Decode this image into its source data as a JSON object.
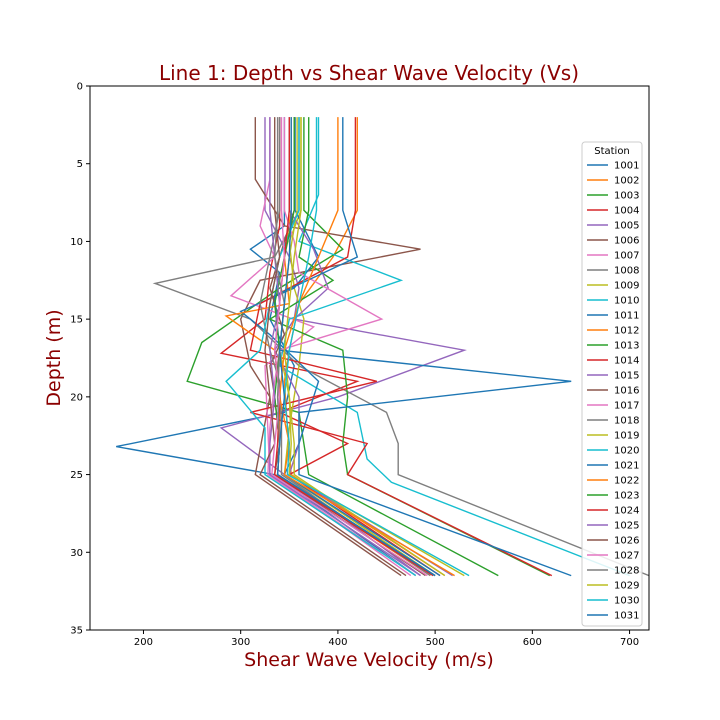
{
  "chart_data": {
    "type": "line",
    "title": "Line 1: Depth vs Shear Wave Velocity (Vs)",
    "xlabel": "Shear Wave Velocity (m/s)",
    "ylabel": "Depth (m)",
    "xlim": [
      145,
      720
    ],
    "ylim": [
      35,
      0
    ],
    "xticks": [
      200,
      300,
      400,
      500,
      600,
      700
    ],
    "yticks": [
      0,
      5,
      10,
      15,
      20,
      25,
      30,
      35
    ],
    "grid": false,
    "legend_title": "Station",
    "legend_position": "right",
    "colors": [
      "#1f77b4",
      "#ff7f0e",
      "#2ca02c",
      "#d62728",
      "#9467bd",
      "#8c564b",
      "#e377c2",
      "#7f7f7f",
      "#bcbd22",
      "#17becf"
    ],
    "series": [
      {
        "name": "1001",
        "depth": [
          2,
          9,
          10.5,
          12,
          15,
          18,
          21,
          23.2,
          25,
          31.5
        ],
        "vs": [
          345,
          345,
          310,
          340,
          330,
          355,
          345,
          172,
          335,
          480
        ]
      },
      {
        "name": "1002",
        "depth": [
          2,
          8,
          11,
          14,
          17,
          19,
          22,
          25,
          31.5
        ],
        "vs": [
          420,
          420,
          395,
          360,
          350,
          345,
          348,
          352,
          510
        ]
      },
      {
        "name": "1003",
        "depth": [
          2,
          8,
          10.5,
          13,
          16.5,
          19,
          21,
          25,
          31.5
        ],
        "vs": [
          365,
          365,
          405,
          340,
          260,
          245,
          360,
          370,
          565
        ]
      },
      {
        "name": "1004",
        "depth": [
          2,
          9,
          12,
          15,
          17.2,
          19,
          21,
          23,
          25,
          31.5
        ],
        "vs": [
          340,
          340,
          330,
          325,
          280,
          420,
          340,
          410,
          350,
          505
        ]
      },
      {
        "name": "1005",
        "depth": [
          2,
          8,
          11,
          13,
          15,
          17,
          20,
          22,
          25,
          31.5
        ],
        "vs": [
          325,
          325,
          350,
          360,
          355,
          530,
          400,
          280,
          345,
          485
        ]
      },
      {
        "name": "1006",
        "depth": [
          2,
          6,
          9,
          10.5,
          12.5,
          15,
          18,
          20,
          25,
          31.5
        ],
        "vs": [
          315,
          315,
          345,
          485,
          320,
          300,
          310,
          330,
          315,
          465
        ]
      },
      {
        "name": "1007",
        "depth": [
          2,
          6,
          9,
          11,
          13.5,
          15.5,
          18,
          25,
          31.5
        ],
        "vs": [
          330,
          330,
          320,
          335,
          290,
          375,
          325,
          330,
          475
        ]
      },
      {
        "name": "1008",
        "depth": [
          2,
          8,
          11,
          12.7,
          15,
          18,
          21,
          23,
          25,
          31.5
        ],
        "vs": [
          360,
          360,
          335,
          212,
          310,
          360,
          450,
          462,
          462,
          720
        ]
      },
      {
        "name": "1009",
        "depth": [
          2,
          8,
          10,
          13,
          15,
          18,
          22,
          25,
          31.5
        ],
        "vs": [
          362,
          362,
          350,
          355,
          365,
          360,
          350,
          345,
          500
        ]
      },
      {
        "name": "1010",
        "depth": [
          2,
          7,
          10,
          12.5,
          15,
          18,
          21,
          24,
          25.5,
          31.5
        ],
        "vs": [
          380,
          380,
          360,
          465,
          350,
          340,
          420,
          430,
          455,
          700
        ]
      },
      {
        "name": "1011",
        "depth": [
          2,
          8,
          11,
          13,
          14.5,
          16,
          19,
          23,
          25,
          31.5
        ],
        "vs": [
          356,
          356,
          380,
          355,
          300,
          330,
          380,
          360,
          345,
          505
        ]
      },
      {
        "name": "1012",
        "depth": [
          2,
          8,
          11,
          14,
          14.8,
          17,
          20,
          23,
          25,
          31.5
        ],
        "vs": [
          352,
          352,
          345,
          350,
          285,
          335,
          340,
          340,
          338,
          495
        ]
      },
      {
        "name": "1013",
        "depth": [
          2,
          8,
          11,
          12.5,
          15,
          17,
          20,
          23,
          25,
          31.5
        ],
        "vs": [
          370,
          370,
          360,
          395,
          330,
          405,
          410,
          405,
          410,
          618
        ]
      },
      {
        "name": "1014",
        "depth": [
          2,
          8,
          11,
          14,
          17,
          19,
          21,
          23,
          25,
          31.5
        ],
        "vs": [
          418,
          418,
          410,
          320,
          310,
          440,
          310,
          430,
          410,
          620
        ]
      },
      {
        "name": "1015",
        "depth": [
          2,
          8,
          10.5,
          13,
          15,
          17,
          20,
          23,
          25,
          31.5
        ],
        "vs": [
          350,
          350,
          375,
          390,
          355,
          335,
          360,
          360,
          350,
          518
        ]
      },
      {
        "name": "1016",
        "depth": [
          2,
          8,
          11,
          13,
          16,
          18,
          20,
          23,
          25,
          31.5
        ],
        "vs": [
          355,
          355,
          340,
          330,
          345,
          330,
          335,
          340,
          335,
          490
        ]
      },
      {
        "name": "1017",
        "depth": [
          2,
          8,
          10,
          12,
          15,
          17,
          19,
          22,
          25,
          31.5
        ],
        "vs": [
          345,
          345,
          355,
          360,
          445,
          340,
          335,
          330,
          328,
          480
        ]
      },
      {
        "name": "1018",
        "depth": [
          2,
          8,
          11,
          14,
          17,
          19,
          22,
          25,
          31.5
        ],
        "vs": [
          340,
          340,
          330,
          320,
          330,
          340,
          342,
          342,
          495
        ]
      },
      {
        "name": "1019",
        "depth": [
          2,
          8,
          11,
          14,
          17,
          20,
          23,
          25,
          31.5
        ],
        "vs": [
          358,
          358,
          350,
          345,
          340,
          350,
          355,
          355,
          510
        ]
      },
      {
        "name": "1020",
        "depth": [
          2,
          8,
          11,
          14,
          17,
          19,
          22,
          25,
          31.5
        ],
        "vs": [
          360,
          360,
          340,
          330,
          320,
          285,
          325,
          325,
          480
        ]
      },
      {
        "name": "1021",
        "depth": [
          2,
          8,
          11,
          13.5,
          17,
          19,
          21,
          25,
          31.5
        ],
        "vs": [
          405,
          405,
          420,
          335,
          340,
          640,
          360,
          360,
          640
        ]
      },
      {
        "name": "1022",
        "depth": [
          2,
          8,
          11,
          14,
          17,
          20,
          23,
          25,
          31.5
        ],
        "vs": [
          400,
          400,
          380,
          360,
          345,
          340,
          350,
          345,
          520
        ]
      },
      {
        "name": "1023",
        "depth": [
          2,
          8,
          11,
          14,
          17,
          20,
          23,
          25,
          31.5
        ],
        "vs": [
          355,
          355,
          345,
          335,
          340,
          335,
          340,
          338,
          500
        ]
      },
      {
        "name": "1024",
        "depth": [
          2,
          8,
          11,
          14,
          17,
          20,
          23,
          25,
          31.5
        ],
        "vs": [
          350,
          350,
          345,
          340,
          335,
          340,
          338,
          335,
          498
        ]
      },
      {
        "name": "1025",
        "depth": [
          2,
          8,
          11,
          14,
          17,
          20,
          23,
          25,
          31.5
        ],
        "vs": [
          330,
          330,
          335,
          340,
          330,
          335,
          330,
          330,
          485
        ]
      },
      {
        "name": "1026",
        "depth": [
          2,
          8,
          11,
          14,
          17,
          20,
          23,
          25,
          31.5
        ],
        "vs": [
          335,
          335,
          340,
          330,
          325,
          330,
          335,
          320,
          470
        ]
      },
      {
        "name": "1027",
        "depth": [
          2,
          8,
          11,
          14,
          17,
          20,
          23,
          25,
          31.5
        ],
        "vs": [
          342,
          342,
          345,
          340,
          335,
          340,
          335,
          332,
          492
        ]
      },
      {
        "name": "1028",
        "depth": [
          2,
          8,
          11,
          14,
          17,
          20,
          23,
          25,
          31.5
        ],
        "vs": [
          338,
          338,
          335,
          345,
          340,
          338,
          340,
          338,
          500
        ]
      },
      {
        "name": "1029",
        "depth": [
          2,
          8,
          11,
          14,
          17,
          20,
          23,
          25,
          31.5
        ],
        "vs": [
          362,
          362,
          355,
          350,
          345,
          350,
          352,
          350,
          530
        ]
      },
      {
        "name": "1030",
        "depth": [
          2,
          8,
          11,
          14,
          17,
          20,
          23,
          25,
          31.5
        ],
        "vs": [
          378,
          378,
          370,
          360,
          350,
          345,
          350,
          348,
          535
        ]
      },
      {
        "name": "1031",
        "depth": [
          2,
          8,
          11,
          14,
          17,
          20,
          23,
          25,
          31.5
        ],
        "vs": [
          352,
          352,
          350,
          345,
          340,
          345,
          340,
          338,
          500
        ]
      }
    ]
  }
}
